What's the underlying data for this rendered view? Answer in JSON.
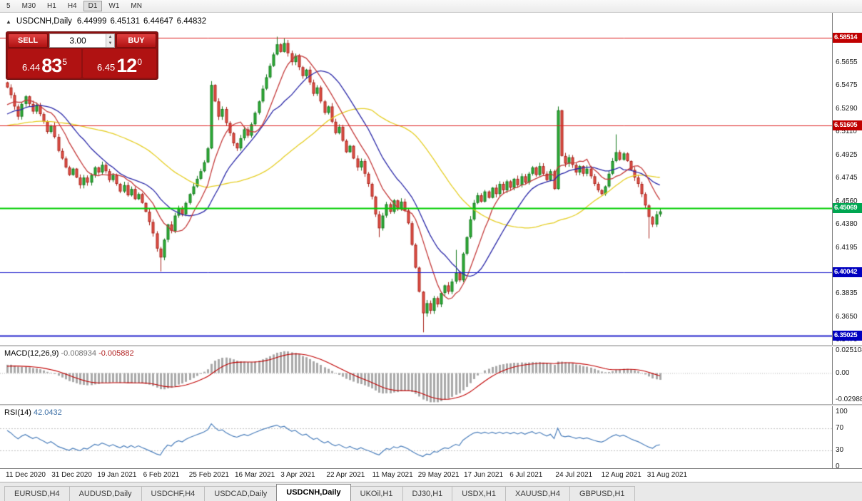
{
  "toolbar": {
    "timeframes": [
      {
        "label": "5",
        "active": false
      },
      {
        "label": "M30",
        "active": false
      },
      {
        "label": "H1",
        "active": false
      },
      {
        "label": "H4",
        "active": false
      },
      {
        "label": "D1",
        "active": true
      },
      {
        "label": "W1",
        "active": false
      },
      {
        "label": "MN",
        "active": false
      }
    ]
  },
  "chart_header": {
    "collapse_icon": "▲",
    "title": "USDCNH,Daily",
    "open": "6.44999",
    "high": "6.45131",
    "low": "6.44647",
    "close": "6.44832"
  },
  "trade_panel": {
    "sell_label": "SELL",
    "buy_label": "BUY",
    "volume": "3.00",
    "spin_up_icon": "▲",
    "spin_down_icon": "▼",
    "bid_prefix": "6.44",
    "bid_big": "83",
    "bid_sup": "5",
    "ask_prefix": "6.45",
    "ask_big": "12",
    "ask_sup": "0"
  },
  "tabs": [
    {
      "label": "EURUSD,H4",
      "active": false
    },
    {
      "label": "AUDUSD,Daily",
      "active": false
    },
    {
      "label": "USDCHF,H4",
      "active": false
    },
    {
      "label": "USDCAD,Daily",
      "active": false
    },
    {
      "label": "USDCNH,Daily",
      "active": true
    },
    {
      "label": "UKOil,H1",
      "active": false
    },
    {
      "label": "DJ30,H1",
      "active": false
    },
    {
      "label": "USDX,H1",
      "active": false
    },
    {
      "label": "XAUUSD,H4",
      "active": false
    },
    {
      "label": "GBPUSD,H1",
      "active": false
    }
  ],
  "chart_data": {
    "type": "candlestick",
    "symbol": "USDCNH",
    "timeframe": "Daily",
    "x_labels": [
      "11 Dec 2020",
      "31 Dec 2020",
      "19 Jan 2021",
      "6 Feb 2021",
      "25 Feb 2021",
      "16 Mar 2021",
      "3 Apr 2021",
      "22 Apr 2021",
      "11 May 2021",
      "29 May 2021",
      "17 Jun 2021",
      "6 Jul 2021",
      "24 Jul 2021",
      "12 Aug 2021",
      "31 Aug 2021"
    ],
    "y_ticks": [
      "6.5655",
      "6.5475",
      "6.5290",
      "6.5110",
      "6.4925",
      "6.4745",
      "6.4560",
      "6.4380",
      "6.4195",
      "6.4015",
      "6.3835",
      "6.3650",
      "6.3470"
    ],
    "levels": [
      {
        "value": 6.58514,
        "label": "6.58514",
        "line_color": "#dd2222",
        "badge_color": "#c00000",
        "width": 1
      },
      {
        "value": 6.51605,
        "label": "6.51605",
        "line_color": "#dd2222",
        "badge_color": "#c00000",
        "width": 1
      },
      {
        "value": 6.45069,
        "label": "6.45069",
        "line_color": "#00ce00",
        "badge_color": "#00a651",
        "width": 2
      },
      {
        "value": 6.40042,
        "label": "6.40042",
        "line_color": "#2222cc",
        "badge_color": "#0000c0",
        "width": 1
      },
      {
        "value": 6.35025,
        "label": "6.35025",
        "line_color": "#2222cc",
        "badge_color": "#0000c0",
        "width": 2
      }
    ],
    "price": {
      "up_color": "#30b03a",
      "up_border": "#147a1d",
      "down_color": "#e45248",
      "down_border": "#a8241c",
      "preroll": [
        6.495,
        6.501,
        6.493,
        6.499,
        6.505,
        6.497,
        6.503,
        6.509,
        6.501,
        6.507,
        6.513,
        6.505,
        6.511,
        6.517,
        6.509,
        6.515,
        6.521,
        6.513,
        6.519,
        6.525,
        6.517,
        6.523,
        6.529,
        6.521,
        6.527,
        6.533,
        6.525,
        6.531,
        6.537,
        6.543
      ],
      "closes": [
        6.546,
        6.54,
        6.531,
        6.523,
        6.533,
        6.539,
        6.533,
        6.527,
        6.532,
        6.525,
        6.519,
        6.511,
        6.516,
        6.507,
        6.496,
        6.49,
        6.483,
        6.477,
        6.482,
        6.475,
        6.469,
        6.475,
        6.471,
        6.477,
        6.483,
        6.479,
        6.485,
        6.48,
        6.473,
        6.477,
        6.47,
        6.464,
        6.469,
        6.461,
        6.466,
        6.458,
        6.462,
        6.455,
        6.448,
        6.44,
        6.431,
        6.419,
        6.412,
        6.426,
        6.438,
        6.433,
        6.445,
        6.451,
        6.446,
        6.455,
        6.462,
        6.468,
        6.474,
        6.48,
        6.487,
        6.498,
        6.548,
        6.535,
        6.523,
        6.529,
        6.518,
        6.51,
        6.502,
        6.498,
        6.506,
        6.513,
        6.508,
        6.517,
        6.526,
        6.535,
        6.545,
        6.554,
        6.563,
        6.572,
        6.58,
        6.574,
        6.581,
        6.573,
        6.566,
        6.571,
        6.562,
        6.555,
        6.56,
        6.55,
        6.541,
        6.546,
        6.535,
        6.526,
        6.531,
        6.519,
        6.51,
        6.515,
        6.504,
        6.495,
        6.5,
        6.49,
        6.483,
        6.488,
        6.478,
        6.47,
        6.46,
        6.446,
        6.435,
        6.445,
        6.454,
        6.448,
        6.457,
        6.45,
        6.456,
        6.449,
        6.439,
        6.422,
        6.404,
        6.385,
        6.368,
        6.376,
        6.37,
        6.38,
        6.375,
        6.384,
        6.39,
        6.385,
        6.393,
        6.4,
        6.394,
        6.415,
        6.428,
        6.442,
        6.455,
        6.461,
        6.456,
        6.464,
        6.459,
        6.467,
        6.462,
        6.47,
        6.465,
        6.472,
        6.467,
        6.474,
        6.469,
        6.476,
        6.471,
        6.478,
        6.483,
        6.477,
        6.484,
        6.478,
        6.473,
        6.48,
        6.466,
        6.528,
        6.492,
        6.486,
        6.491,
        6.485,
        6.479,
        6.484,
        6.478,
        6.482,
        6.476,
        6.47,
        6.465,
        6.462,
        6.468,
        6.478,
        6.488,
        6.495,
        6.489,
        6.494,
        6.488,
        6.481,
        6.475,
        6.47,
        6.462,
        6.453,
        6.444,
        6.438,
        6.446,
        6.4483
      ],
      "overrides": {
        "0": {
          "o": 6.55
        },
        "42": {
          "l": 6.401
        },
        "56": {
          "h": 6.551
        },
        "74": {
          "h": 6.586
        },
        "76": {
          "h": 6.5845
        },
        "102": {
          "l": 6.428
        },
        "114": {
          "l": 6.353
        },
        "123": {
          "h": 6.418
        },
        "151": {
          "h": 6.531
        },
        "167": {
          "h": 6.509
        },
        "176": {
          "l": 6.427
        }
      }
    },
    "moving_averages": [
      {
        "period": 45,
        "color": "#e5ce25"
      },
      {
        "period": 18,
        "color": "#2a28a8"
      },
      {
        "period": 9,
        "color": "#c43a3a"
      }
    ],
    "macd": {
      "label": "MACD(12,26,9)",
      "value_main": "-0.008934",
      "value_signal": "-0.005882",
      "fast": 12,
      "slow": 26,
      "signal_period": 9,
      "axis": [
        "0.025108",
        "0.00",
        "-0.02988"
      ],
      "histogram_color": "#a9a9a9",
      "signal_color": "#c00000"
    },
    "rsi": {
      "label": "RSI(14)",
      "value": "42.0432",
      "period": 14,
      "axis": [
        "100",
        "70",
        "30",
        "0"
      ],
      "guide_levels": [
        70,
        30
      ],
      "line_color": "#4a7ebb"
    }
  }
}
